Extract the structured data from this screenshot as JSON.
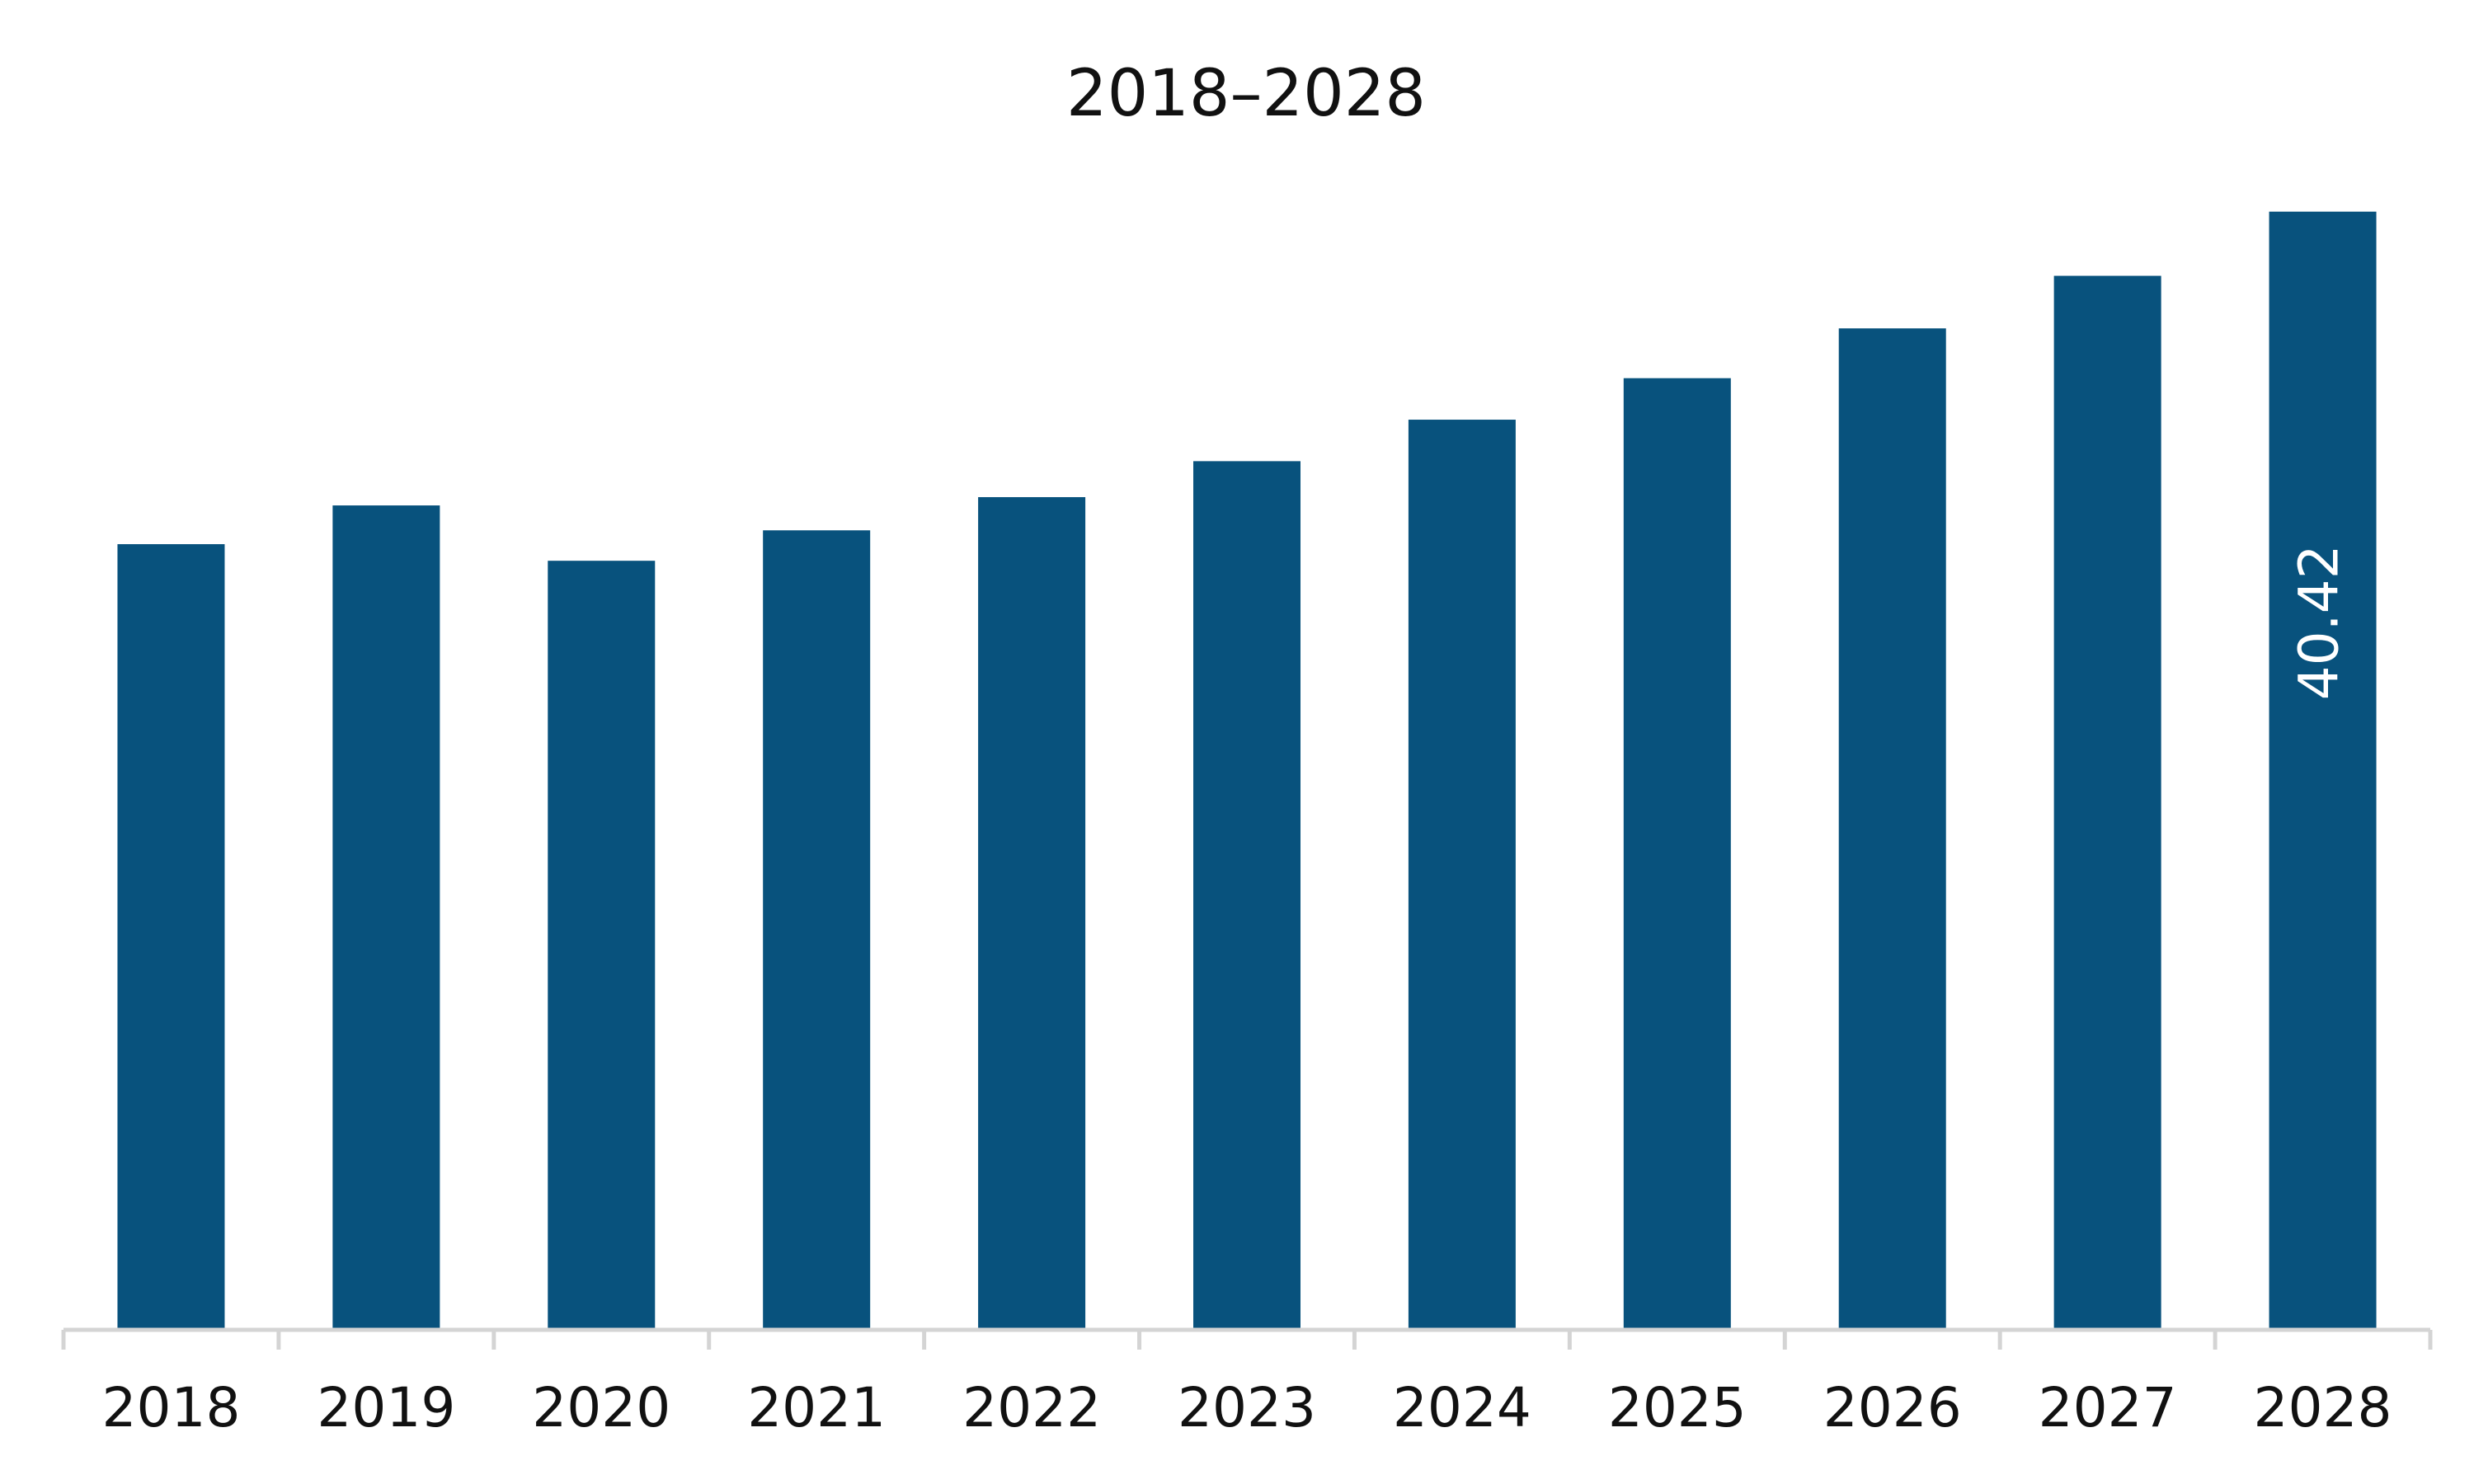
{
  "colors": {
    "bar": "#08527d",
    "axis": "#d4d4d4",
    "text": "#111111",
    "data_label": "#ffffff"
  },
  "chart_data": {
    "type": "bar",
    "title": "2018–2028",
    "xlabel": "",
    "ylabel": "",
    "categories": [
      "2018",
      "2019",
      "2020",
      "2021",
      "2022",
      "2023",
      "2024",
      "2025",
      "2026",
      "2027",
      "2028"
    ],
    "values": [
      28.4,
      29.8,
      27.8,
      28.9,
      30.1,
      31.4,
      32.9,
      34.4,
      36.2,
      38.1,
      40.42
    ],
    "data_labels": [
      "",
      "",
      "",
      "",
      "",
      "",
      "",
      "",
      "",
      "",
      "40.42"
    ],
    "ylim": [
      0,
      43.6
    ],
    "grid": false,
    "legend": "none"
  }
}
